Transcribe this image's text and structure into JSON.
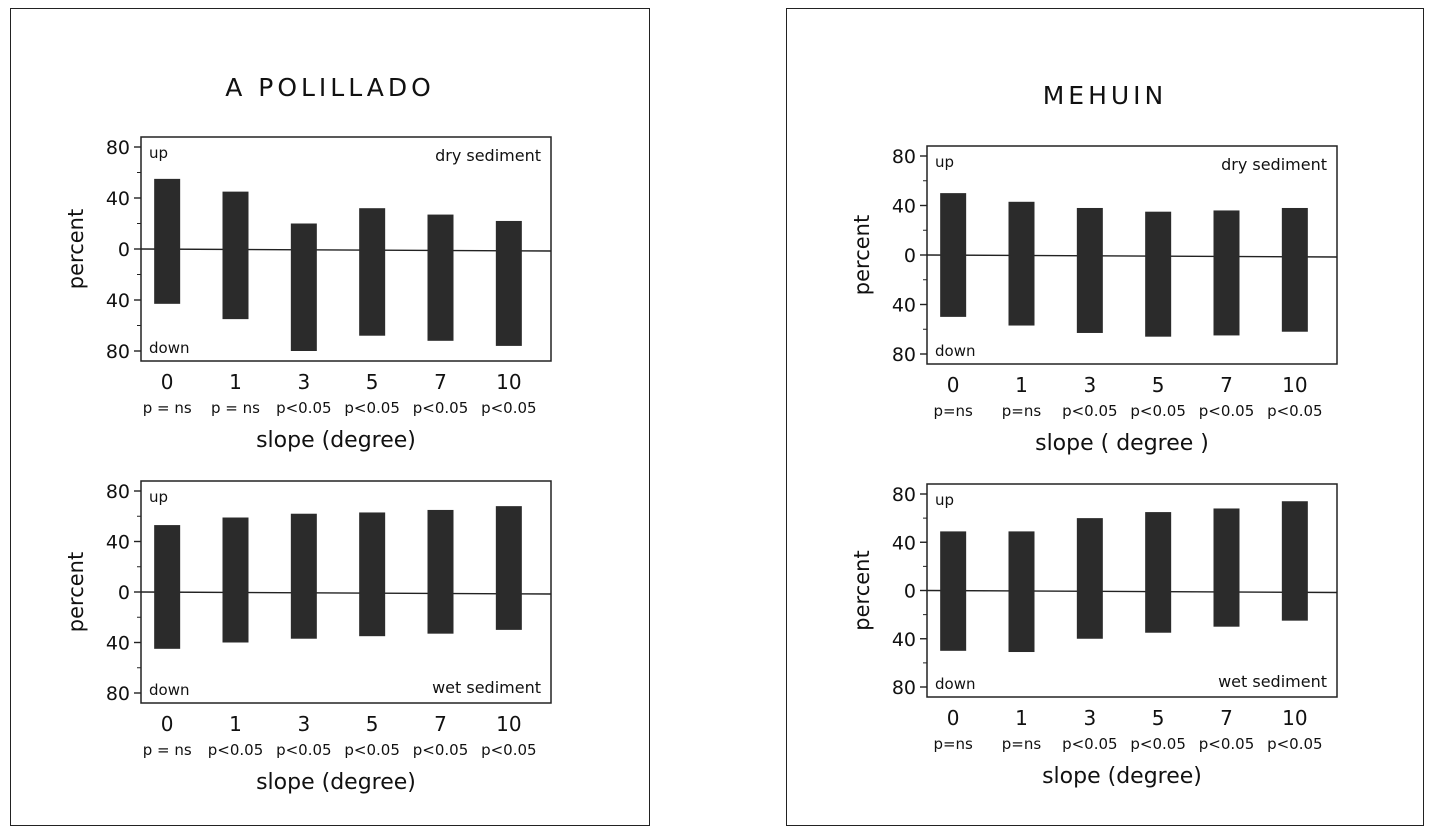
{
  "colors": {
    "bar": "#2b2b2b",
    "frame": "#222222",
    "text": "#111111"
  },
  "panels": [
    {
      "title": "A POLILLADO",
      "charts": [
        {
          "type": "bar",
          "subtitle": "dry sediment",
          "ylabel": "percent",
          "xlabel": "slope (degree)",
          "up_label": "up",
          "down_label": "down",
          "y_ticks": [
            "80",
            "40",
            "0",
            "40",
            "80"
          ],
          "ylim": [
            -80,
            80
          ],
          "categories": [
            "0",
            "1",
            "3",
            "5",
            "7",
            "10"
          ],
          "significance": [
            "p = ns",
            "p = ns",
            "p<0.05",
            "p<0.05",
            "p<0.05",
            "p<0.05"
          ],
          "series": [
            {
              "values_up": [
                55,
                45,
                20,
                32,
                27,
                22
              ],
              "values_down": [
                43,
                55,
                80,
                68,
                72,
                76
              ]
            }
          ]
        },
        {
          "type": "bar",
          "subtitle": "wet sediment",
          "ylabel": "percent",
          "xlabel": "slope (degree)",
          "up_label": "up",
          "down_label": "down",
          "y_ticks": [
            "80",
            "40",
            "0",
            "40",
            "80"
          ],
          "ylim": [
            -80,
            80
          ],
          "categories": [
            "0",
            "1",
            "3",
            "5",
            "7",
            "10"
          ],
          "significance": [
            "p = ns",
            "p<0.05",
            "p<0.05",
            "p<0.05",
            "p<0.05",
            "p<0.05"
          ],
          "series": [
            {
              "values_up": [
                53,
                59,
                62,
                63,
                65,
                68
              ],
              "values_down": [
                45,
                40,
                37,
                35,
                33,
                30
              ]
            }
          ]
        }
      ]
    },
    {
      "title": "MEHUIN",
      "charts": [
        {
          "type": "bar",
          "subtitle": "dry sediment",
          "ylabel": "percent",
          "xlabel": "slope ( degree )",
          "up_label": "up",
          "down_label": "down",
          "y_ticks": [
            "80",
            "40",
            "0",
            "40",
            "80"
          ],
          "ylim": [
            -80,
            80
          ],
          "categories": [
            "0",
            "1",
            "3",
            "5",
            "7",
            "10"
          ],
          "significance": [
            "p=ns",
            "p=ns",
            "p<0.05",
            "p<0.05",
            "p<0.05",
            "p<0.05"
          ],
          "series": [
            {
              "values_up": [
                50,
                43,
                38,
                35,
                36,
                38
              ],
              "values_down": [
                50,
                57,
                63,
                66,
                65,
                62
              ]
            }
          ]
        },
        {
          "type": "bar",
          "subtitle": "wet sediment",
          "ylabel": "percent",
          "xlabel": "slope (degree)",
          "up_label": "up",
          "down_label": "down",
          "y_ticks": [
            "80",
            "40",
            "0",
            "40",
            "80"
          ],
          "ylim": [
            -80,
            80
          ],
          "categories": [
            "0",
            "1",
            "3",
            "5",
            "7",
            "10"
          ],
          "significance": [
            "p=ns",
            "p=ns",
            "p<0.05",
            "p<0.05",
            "p<0.05",
            "p<0.05"
          ],
          "series": [
            {
              "values_up": [
                49,
                49,
                60,
                65,
                68,
                74
              ],
              "values_down": [
                50,
                51,
                40,
                35,
                30,
                25
              ]
            }
          ]
        }
      ]
    }
  ]
}
